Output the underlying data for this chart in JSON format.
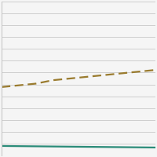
{
  "x": [
    0,
    1,
    2,
    3,
    4,
    5,
    6,
    7,
    8,
    9
  ],
  "smoker_y": [
    4.0,
    4.1,
    4.2,
    4.4,
    4.5,
    4.6,
    4.7,
    4.8,
    4.9,
    5.0
  ],
  "nonsmoker_y": [
    0.55,
    0.54,
    0.53,
    0.52,
    0.51,
    0.5,
    0.49,
    0.48,
    0.47,
    0.46
  ],
  "smoker_color": "#9a7b2e",
  "nonsmoker_color": "#2a8b78",
  "background_color": "#f5f5f5",
  "grid_color": "#c8c8c8",
  "ylim": [
    0,
    9.0
  ],
  "xlim": [
    0,
    9
  ],
  "num_yticks": 14,
  "fig_width": 2.0,
  "fig_height": 2.0,
  "dpi": 100
}
